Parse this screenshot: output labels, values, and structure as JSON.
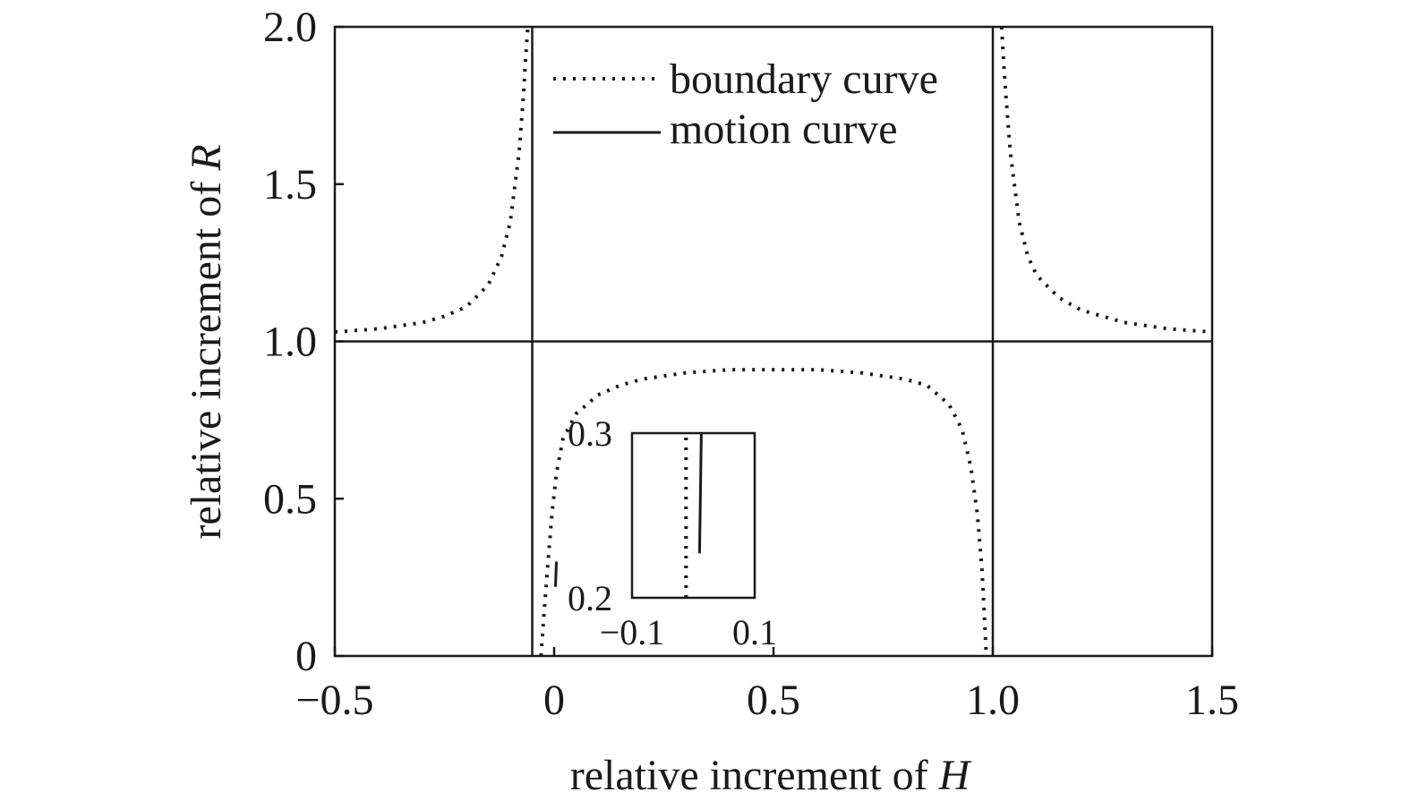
{
  "chart_data": [
    {
      "type": "line",
      "xlabel_prefix": "relative increment of ",
      "xlabel_var": "H",
      "ylabel_prefix": "relative increment of ",
      "ylabel_var": "R",
      "xlim": [
        -0.5,
        1.5
      ],
      "ylim": [
        0,
        2.0
      ],
      "x_ticks": [
        -0.5,
        0,
        0.5,
        1.0,
        1.5
      ],
      "x_tick_labels": [
        "−0.5",
        "0",
        "0.5",
        "1.0",
        "1.5"
      ],
      "y_ticks": [
        0,
        0.5,
        1.0,
        1.5,
        2.0
      ],
      "y_tick_labels": [
        "0",
        "0.5",
        "1.0",
        "1.5",
        "2.0"
      ],
      "grid": false,
      "legend_position": "top-center",
      "reference_lines": [
        {
          "orientation": "vertical",
          "x": -0.05
        },
        {
          "orientation": "vertical",
          "x": 1.0
        },
        {
          "orientation": "horizontal",
          "y": 1.0
        }
      ],
      "series": [
        {
          "name": "boundary curve",
          "style": "dotted",
          "segments": [
            {
              "x": [
                -0.5,
                -0.4,
                -0.3,
                -0.25,
                -0.2,
                -0.15,
                -0.12,
                -0.1,
                -0.08,
                -0.07,
                -0.065,
                -0.06
              ],
              "y": [
                1.03,
                1.04,
                1.06,
                1.08,
                1.11,
                1.18,
                1.27,
                1.38,
                1.6,
                1.78,
                1.9,
                2.0
              ]
            },
            {
              "x": [
                1.02,
                1.025,
                1.03,
                1.04,
                1.06,
                1.08,
                1.1,
                1.15,
                1.2,
                1.25,
                1.3,
                1.4,
                1.5
              ],
              "y": [
                2.0,
                1.88,
                1.78,
                1.6,
                1.38,
                1.27,
                1.21,
                1.14,
                1.1,
                1.08,
                1.06,
                1.04,
                1.03
              ]
            },
            {
              "x": [
                -0.03,
                -0.025,
                -0.015,
                -0.005,
                0.005,
                0.02,
                0.05,
                0.1,
                0.15,
                0.2,
                0.3,
                0.4,
                0.5,
                0.6,
                0.7,
                0.8,
                0.85,
                0.9,
                0.93,
                0.95,
                0.965,
                0.975,
                0.98,
                0.985
              ],
              "y": [
                0,
                0.1,
                0.28,
                0.45,
                0.58,
                0.69,
                0.77,
                0.83,
                0.86,
                0.88,
                0.9,
                0.91,
                0.91,
                0.91,
                0.9,
                0.88,
                0.86,
                0.8,
                0.72,
                0.6,
                0.45,
                0.28,
                0.15,
                0
              ]
            }
          ]
        },
        {
          "name": "motion curve",
          "style": "solid",
          "segments": [
            {
              "x": [
                0.003,
                0.005
              ],
              "y": [
                0.22,
                0.3
              ]
            }
          ]
        }
      ]
    },
    {
      "type": "line",
      "role": "inset",
      "xlim": [
        -0.1,
        0.1
      ],
      "ylim": [
        0.2,
        0.3
      ],
      "x_ticks": [
        -0.1,
        0.1
      ],
      "x_tick_labels": [
        "−0.1",
        "0.1"
      ],
      "y_ticks": [
        0.2,
        0.3
      ],
      "y_tick_labels": [
        "0.2",
        "0.3"
      ],
      "series": [
        {
          "name": "boundary curve",
          "style": "dotted",
          "x": [
            -0.012,
            -0.012
          ],
          "y": [
            0.2,
            0.3
          ]
        },
        {
          "name": "motion curve",
          "style": "solid",
          "x": [
            0.01,
            0.013
          ],
          "y": [
            0.227,
            0.3
          ]
        }
      ]
    }
  ]
}
